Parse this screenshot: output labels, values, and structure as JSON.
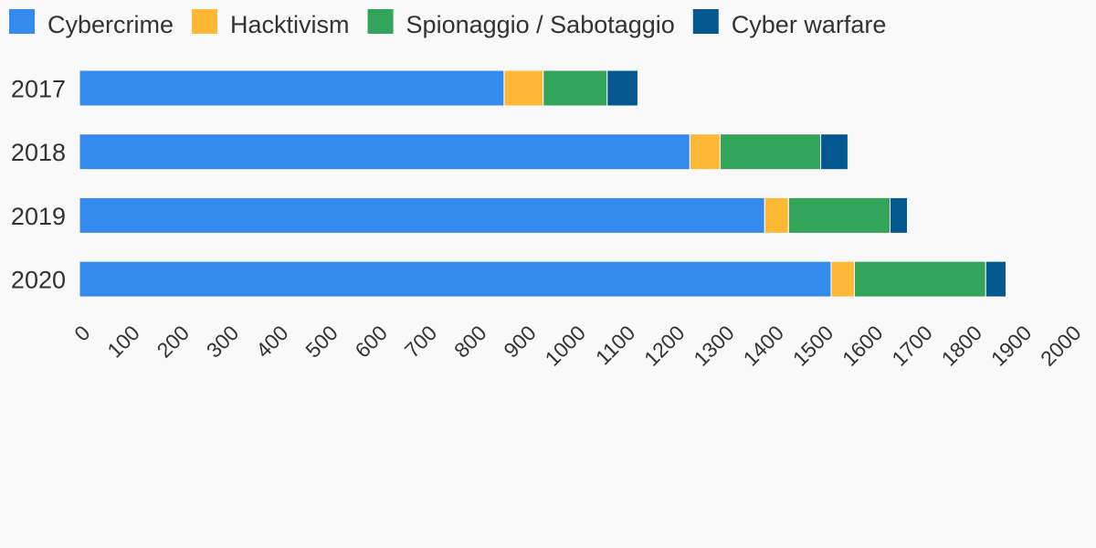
{
  "chart_data": {
    "type": "bar",
    "orientation": "horizontal",
    "stacked": true,
    "categories": [
      "2017",
      "2018",
      "2019",
      "2020"
    ],
    "series": [
      {
        "name": "Cybercrime",
        "color": "#348aed",
        "values": [
          857,
          1232,
          1383,
          1517
        ]
      },
      {
        "name": "Hacktivism",
        "color": "#ffb836",
        "values": [
          79,
          61,
          48,
          47
        ]
      },
      {
        "name": "Spionaggio / Sabotaggio",
        "color": "#33a55a",
        "values": [
          129,
          203,
          205,
          265
        ]
      },
      {
        "name": "Cyber warfare",
        "color": "#02588f",
        "values": [
          62,
          55,
          35,
          41
        ]
      }
    ],
    "x_ticks": [
      "0",
      "100",
      "200",
      "300",
      "400",
      "500",
      "600",
      "700",
      "800",
      "900",
      "1000",
      "1100",
      "1200",
      "1300",
      "1400",
      "1500",
      "1600",
      "1700",
      "1800",
      "1900",
      "2000"
    ],
    "xlim": [
      0,
      2000
    ],
    "legend_position": "top-left",
    "grid": false
  }
}
